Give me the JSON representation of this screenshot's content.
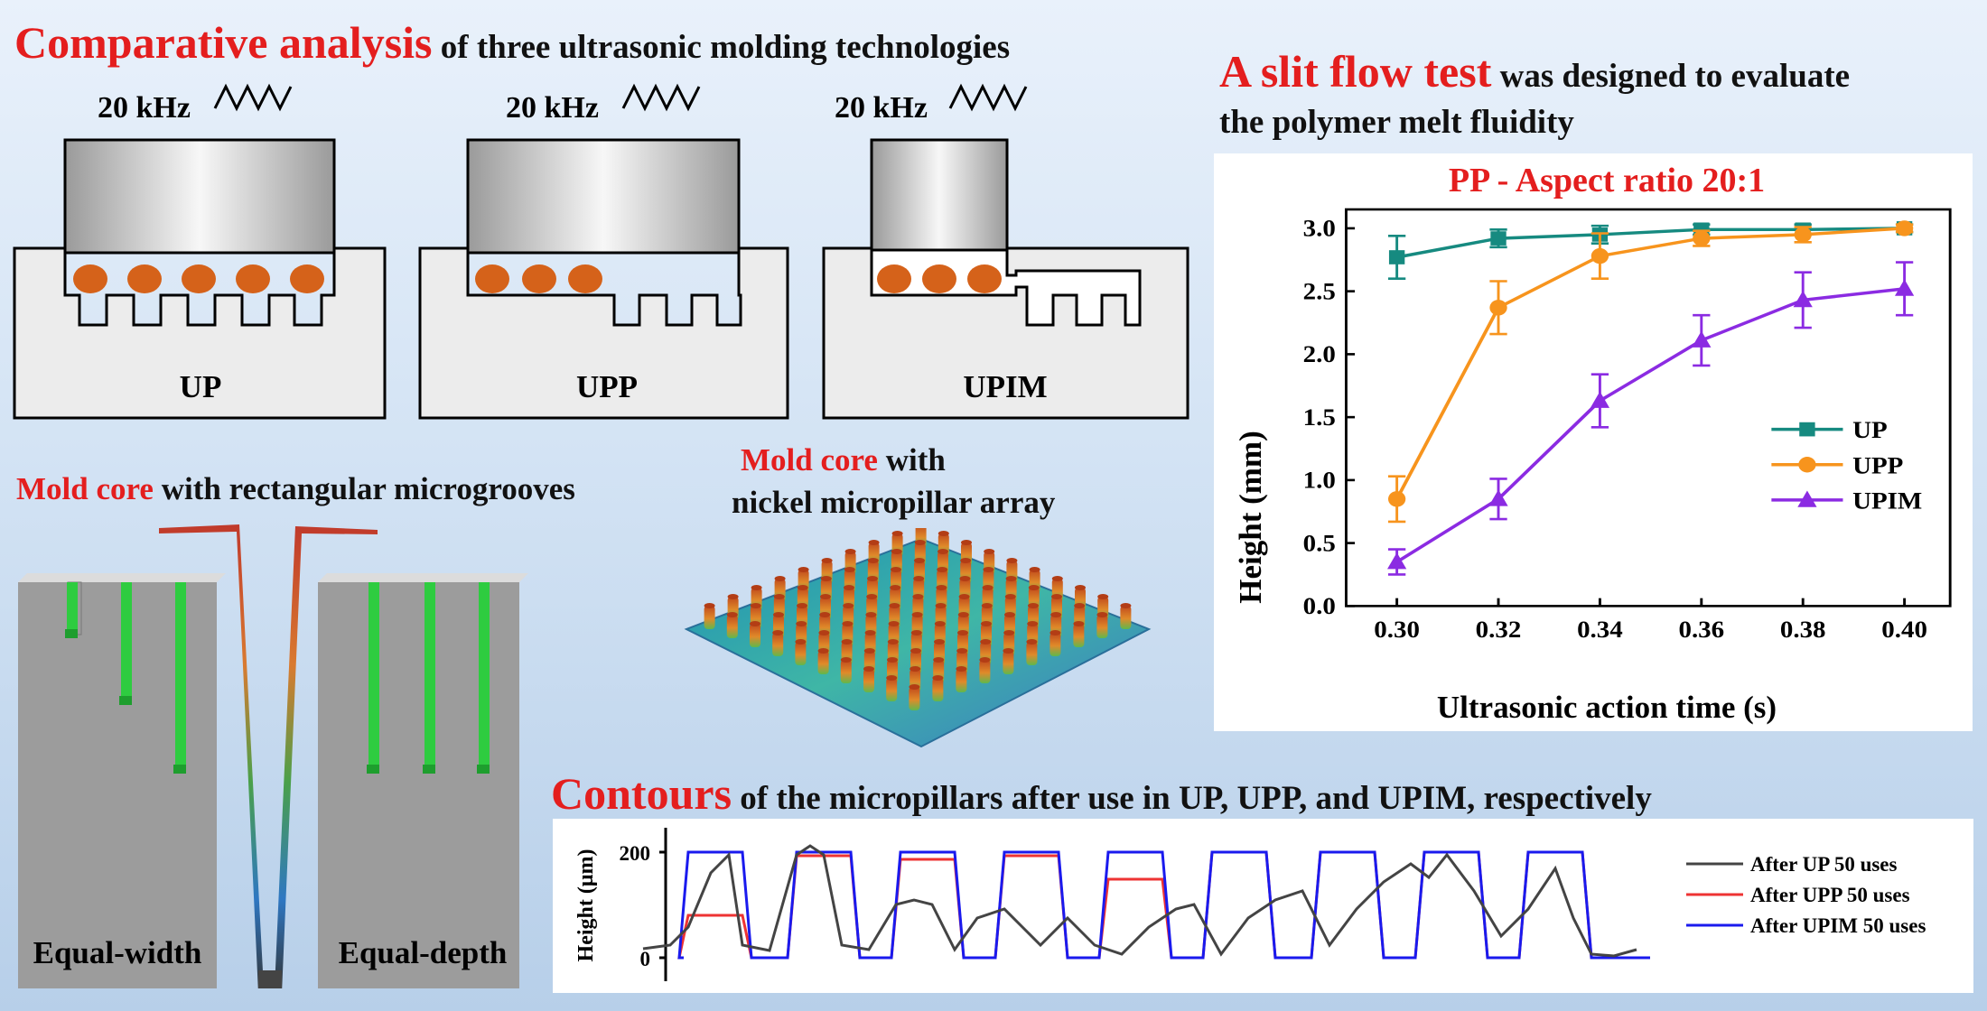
{
  "comparative": {
    "title_hl": "Comparative analysis",
    "title_rest": " of three ultrasonic molding technologies",
    "freq": "20 kHz",
    "labels": [
      "UP",
      "UPP",
      "UPIM"
    ]
  },
  "slit": {
    "title_hl": "A slit flow test",
    "title_rest": " was designed to evaluate",
    "title_line2": "the polymer melt fluidity"
  },
  "grooves": {
    "title_hl": "Mold core",
    "title_rest": " with rectangular microgrooves",
    "left_label": "Equal-width",
    "right_label": "Equal-depth"
  },
  "pillars": {
    "title_hl": "Mold core",
    "title_rest": " with",
    "title_line2": "nickel micropillar array"
  },
  "contours": {
    "title_hl": "Contours",
    "title_rest": " of the micropillars after use in UP, UPP, and UPIM, respectively",
    "ylabel": "Height (μm)",
    "ticks": [
      "200",
      "0"
    ],
    "legend": [
      {
        "name": "After UP 50 uses",
        "color": "#444444"
      },
      {
        "name": "After UPP 50 uses",
        "color": "#ee3333"
      },
      {
        "name": "After UPIM 50 uses",
        "color": "#1a1aee"
      }
    ]
  },
  "chart_data": {
    "type": "line",
    "title": "PP - Aspect ratio 20:1",
    "xlabel": "Ultrasonic action time (s)",
    "ylabel": "Height (mm)",
    "x": [
      0.3,
      0.32,
      0.34,
      0.36,
      0.38,
      0.4
    ],
    "x_tick_labels": [
      "0.30",
      "0.32",
      "0.34",
      "0.36",
      "0.38",
      "0.40"
    ],
    "y_tick_labels": [
      "0.0",
      "0.5",
      "1.0",
      "1.5",
      "2.0",
      "2.5",
      "3.0"
    ],
    "xlim": [
      0.29,
      0.409
    ],
    "ylim": [
      0,
      3.15
    ],
    "legend_position": "right",
    "series": [
      {
        "name": "UP",
        "color": "#168a80",
        "marker": "square",
        "values": [
          2.77,
          2.92,
          2.95,
          2.99,
          2.99,
          3.0
        ],
        "errors": [
          0.17,
          0.07,
          0.07,
          0.04,
          0.04,
          0.03
        ]
      },
      {
        "name": "UPP",
        "color": "#f7941d",
        "marker": "circle",
        "values": [
          0.85,
          2.37,
          2.78,
          2.92,
          2.95,
          3.0
        ],
        "errors": [
          0.18,
          0.21,
          0.18,
          0.06,
          0.06,
          0.03
        ]
      },
      {
        "name": "UPIM",
        "color": "#8b2be2",
        "marker": "triangle",
        "values": [
          0.35,
          0.85,
          1.63,
          2.11,
          2.43,
          2.52
        ],
        "errors": [
          0.1,
          0.16,
          0.21,
          0.2,
          0.22,
          0.21
        ]
      }
    ]
  }
}
